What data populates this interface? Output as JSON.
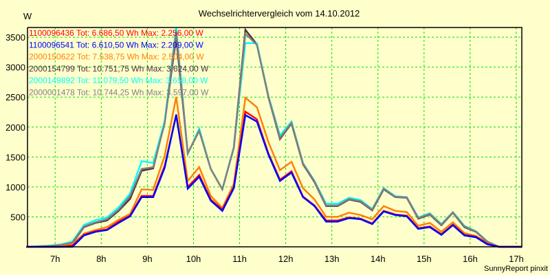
{
  "chart_data": {
    "type": "line",
    "title": "Wechselrichtervergleich vom 14.10.2012",
    "ylabel": "W",
    "xlabel": "",
    "footer": "SunnyReport pinxit",
    "ylim": [
      0,
      3662
    ],
    "xlim": [
      6.4,
      17.12
    ],
    "grid": true,
    "legend_placement": "top-left",
    "yticks": [
      500,
      1000,
      1500,
      2000,
      2500,
      3000,
      3500
    ],
    "ytick_labels": [
      "500",
      "1000",
      "1500",
      "2000",
      "2500",
      "3000",
      "3500"
    ],
    "xticks": [
      7,
      8,
      9,
      10,
      11,
      12,
      13,
      14,
      15,
      16,
      17
    ],
    "xtick_labels": [
      "7h",
      "8h",
      "9h",
      "10h",
      "11h",
      "12h",
      "13h",
      "14h",
      "15h",
      "16h",
      "17h"
    ],
    "x": [
      6.375,
      6.625,
      6.875,
      7.125,
      7.375,
      7.625,
      7.875,
      8.125,
      8.375,
      8.625,
      8.875,
      9.125,
      9.375,
      9.625,
      9.875,
      10.125,
      10.375,
      10.625,
      10.875,
      11.125,
      11.375,
      11.625,
      11.875,
      12.125,
      12.375,
      12.625,
      12.875,
      13.125,
      13.375,
      13.625,
      13.875,
      14.125,
      14.375,
      14.625,
      14.875,
      15.125,
      15.375,
      15.625,
      15.875,
      16.125,
      16.375,
      16.625,
      16.875,
      17.125
    ],
    "series": [
      {
        "name": "1100096436",
        "legend": "1100096436 Tot: 6.686,50 Wh Max: 2.256,00 W",
        "color": "#ff0000",
        "values": [
          0,
          0,
          0,
          0,
          20,
          200,
          260,
          290,
          420,
          520,
          850,
          850,
          1350,
          2200,
          1000,
          1200,
          790,
          620,
          1000,
          2256,
          2130,
          1560,
          1120,
          1260,
          840,
          690,
          440,
          440,
          490,
          470,
          390,
          600,
          540,
          520,
          310,
          340,
          210,
          370,
          200,
          170,
          50,
          0,
          0,
          0
        ]
      },
      {
        "name": "1100096541",
        "legend": "1100096541 Tot: 6.610,50 Wh Max: 2.209,00 W",
        "color": "#0000ff",
        "values": [
          0,
          0,
          0,
          0,
          0,
          190,
          250,
          280,
          400,
          510,
          830,
          830,
          1320,
          2209,
          970,
          1170,
          770,
          600,
          980,
          2200,
          2090,
          1540,
          1100,
          1240,
          830,
          680,
          420,
          420,
          480,
          460,
          380,
          590,
          530,
          510,
          300,
          330,
          200,
          360,
          190,
          160,
          40,
          0,
          0,
          0
        ]
      },
      {
        "name": "2000150622",
        "legend": "2000150622 Tot: 7.538,75 Wh Max: 2.504,00 W",
        "color": "#ff8000",
        "values": [
          0,
          0,
          0,
          10,
          40,
          220,
          280,
          330,
          450,
          550,
          960,
          950,
          1520,
          2504,
          1100,
          1330,
          850,
          650,
          1050,
          2490,
          2330,
          1750,
          1280,
          1420,
          980,
          790,
          500,
          500,
          570,
          530,
          460,
          680,
          600,
          580,
          350,
          400,
          250,
          410,
          230,
          180,
          60,
          0,
          0,
          0
        ]
      },
      {
        "name": "2000154799",
        "legend": "2000154799 Tot: 10.751,75 Wh Max: 3.624,00 W",
        "color": "#503040",
        "values": [
          0,
          5,
          10,
          20,
          60,
          330,
          400,
          440,
          600,
          800,
          1270,
          1310,
          2080,
          3500,
          1560,
          1940,
          1300,
          960,
          1660,
          3624,
          3380,
          2500,
          1800,
          2060,
          1380,
          1080,
          680,
          680,
          790,
          750,
          610,
          960,
          830,
          820,
          470,
          540,
          360,
          570,
          330,
          250,
          80,
          0,
          0,
          0
        ]
      },
      {
        "name": "2000149892",
        "legend": "2000149892 Tot: 11.079,50 Wh Max: 3.658,00 W",
        "color": "#00ffff",
        "values": [
          0,
          10,
          20,
          40,
          90,
          365,
          445,
          490,
          660,
          890,
          1430,
          1400,
          2100,
          3658,
          1550,
          1975,
          1300,
          960,
          1670,
          3400,
          3400,
          2520,
          1860,
          2090,
          1400,
          1100,
          720,
          720,
          820,
          780,
          630,
          980,
          845,
          830,
          490,
          560,
          380,
          580,
          350,
          260,
          90,
          0,
          0,
          0
        ]
      },
      {
        "name": "2000001478",
        "legend": "2000001478 Tot: 10.744,25 Wh Max: 3.597,00 W",
        "color": "#808080",
        "values": [
          0,
          5,
          15,
          30,
          70,
          340,
          410,
          460,
          620,
          850,
          1300,
          1330,
          2060,
          3597,
          1560,
          1940,
          1300,
          960,
          1650,
          3560,
          3370,
          2510,
          1820,
          2070,
          1390,
          1090,
          690,
          690,
          800,
          760,
          620,
          970,
          835,
          825,
          480,
          550,
          370,
          575,
          340,
          255,
          85,
          0,
          0,
          0
        ]
      }
    ],
    "draw_order": [
      3,
      4,
      5,
      2,
      0,
      1
    ]
  }
}
